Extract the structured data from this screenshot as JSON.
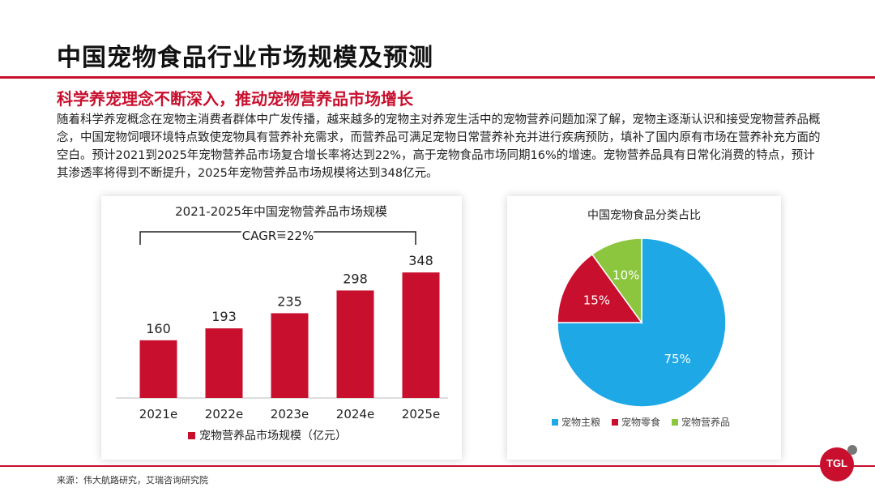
{
  "page": {
    "title": "中国宠物食品行业市场规模及预测",
    "subtitle": "科学养宠理念不断深入，推动宠物营养品市场增长",
    "paragraph": "随着科学养宠概念在宠物主消费者群体中广发传播，越来越多的宠物主对养宠生活中的宠物营养问题加深了解，宠物主逐渐认识和接受宠物营养品概念，中国宠物饲喂环境特点致使宠物具有营养补充需求，而营养品可满足宠物日常营养补充并进行疾病预防，填补了国内原有市场在营养补充方面的空白。预计2021到2025年宠物营养品市场复合增长率将达到22%，高于宠物食品市场同期16%的增速。宠物营养品具有日常化消费的特点，预计其渗透率将得到不断提升，2025年宠物营养品市场规模将达到348亿元。",
    "source": "来源：伟大航路研究，艾瑞咨询研究院",
    "logo": "TGL"
  },
  "chart_data": [
    {
      "type": "bar",
      "title": "2021-2025年中国宠物营养品市场规模",
      "annotation": "CAGR=22%",
      "categories": [
        "2021e",
        "2022e",
        "2023e",
        "2024e",
        "2025e"
      ],
      "series": [
        {
          "name": "宠物营养品市场规模（亿元）",
          "values": [
            160,
            193,
            235,
            298,
            348
          ]
        }
      ],
      "ylim": [
        0,
        400
      ],
      "color": "#c8102e",
      "legend": "bottom"
    },
    {
      "type": "pie",
      "title": "中国宠物食品分类占比",
      "slices": [
        {
          "name": "宠物主粮",
          "value": 75,
          "label": "75%",
          "color": "#1fa8e6"
        },
        {
          "name": "宠物零食",
          "value": 15,
          "label": "15%",
          "color": "#c8102e"
        },
        {
          "name": "宠物营养品",
          "value": 10,
          "label": "10%",
          "color": "#8cc63f"
        }
      ],
      "legend": "bottom"
    }
  ]
}
